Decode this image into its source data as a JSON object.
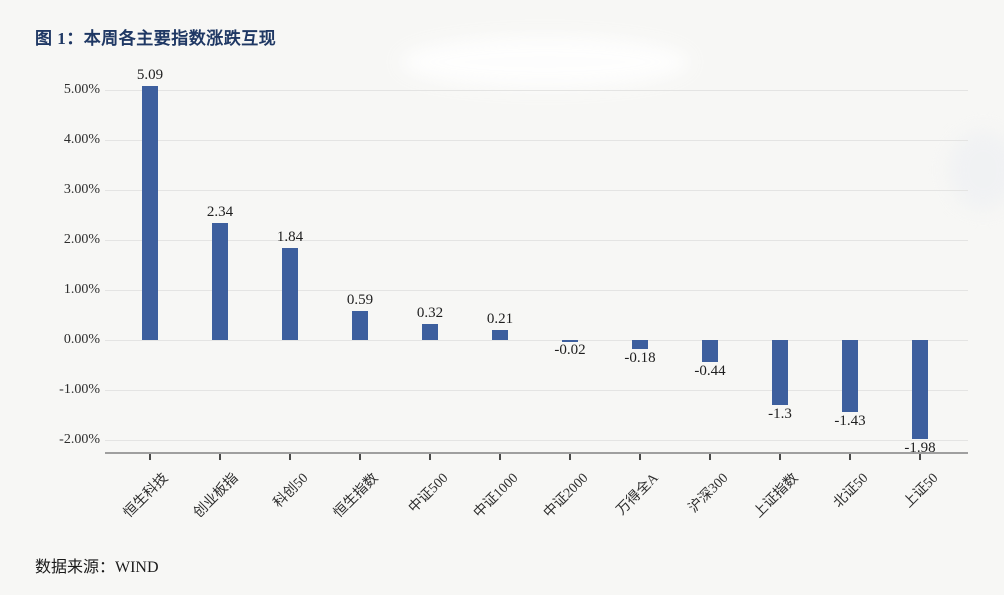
{
  "title": {
    "text": "图 1：本周各主要指数涨跌互现",
    "color": "#1f3864"
  },
  "source_note": "数据来源：WIND",
  "chart_data": {
    "type": "bar",
    "title": "图 1：本周各主要指数涨跌互现",
    "categories": [
      "恒生科技",
      "创业板指",
      "科创50",
      "恒生指数",
      "中证500",
      "中证1000",
      "中证2000",
      "万得全A",
      "沪深300",
      "上证指数",
      "北证50",
      "上证50"
    ],
    "values": [
      5.09,
      2.34,
      1.84,
      0.59,
      0.32,
      0.21,
      -0.02,
      -0.18,
      -0.44,
      -1.3,
      -1.43,
      -1.98
    ],
    "value_labels": [
      "5.09",
      "2.34",
      "1.84",
      "0.59",
      "0.32",
      "0.21",
      "-0.02",
      "-0.18",
      "-0.44",
      "-1.3",
      "-1.43",
      "-1.98"
    ],
    "y_ticks": [
      {
        "value": 5,
        "label": "5.00%"
      },
      {
        "value": 4,
        "label": "4.00%"
      },
      {
        "value": 3,
        "label": "3.00%"
      },
      {
        "value": 2,
        "label": "2.00%"
      },
      {
        "value": 1,
        "label": "1.00%"
      },
      {
        "value": 0,
        "label": "0.00%"
      },
      {
        "value": -1,
        "label": "-1.00%"
      },
      {
        "value": -2,
        "label": "-2.00%"
      }
    ],
    "ylim": [
      -2.26,
      5.3
    ],
    "unit": "%",
    "xlabel": "",
    "ylabel": "",
    "grid": true,
    "legend": "none",
    "bar_color": "#3d5f9e",
    "background_color": "#f7f7f5"
  }
}
